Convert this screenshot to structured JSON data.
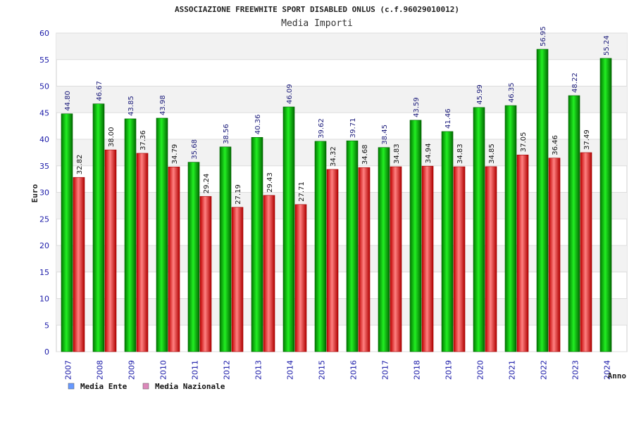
{
  "chart_data": {
    "type": "bar",
    "title": "ASSOCIAZIONE FREEWHITE SPORT DISABLED ONLUS (c.f.96029010012)",
    "subtitle": "Media Importi",
    "xlabel": "Anno",
    "ylabel": "Euro",
    "ylim": [
      0,
      60
    ],
    "yticks": [
      0,
      5,
      10,
      15,
      20,
      25,
      30,
      35,
      40,
      45,
      50,
      55,
      60
    ],
    "grid": true,
    "legend_position": "bottom-left",
    "categories": [
      "2007",
      "2008",
      "2009",
      "2010",
      "2011",
      "2012",
      "2013",
      "2014",
      "2015",
      "2016",
      "2017",
      "2018",
      "2019",
      "2020",
      "2021",
      "2022",
      "2023",
      "2024"
    ],
    "series": [
      {
        "name": "Media Ente",
        "color": "#00c000",
        "legend_color": "#6699ff",
        "values": [
          44.8,
          46.67,
          43.85,
          43.98,
          35.68,
          38.56,
          40.36,
          46.09,
          39.62,
          39.71,
          38.45,
          43.59,
          41.46,
          45.99,
          46.35,
          56.95,
          48.22,
          55.24
        ],
        "labels": [
          "44.80",
          "46.67",
          "43.85",
          "43.98",
          "35.68",
          "38.56",
          "40.36",
          "46.09",
          "39.62",
          "39.71",
          "38.45",
          "43.59",
          "41.46",
          "45.99",
          "46.35",
          "56.95",
          "48.22",
          "55.24"
        ]
      },
      {
        "name": "Media Nazionale",
        "color": "#e02020",
        "legend_color": "#dd88bb",
        "values": [
          32.82,
          38.0,
          37.36,
          34.79,
          29.24,
          27.19,
          29.43,
          27.71,
          34.32,
          34.68,
          34.83,
          34.94,
          34.83,
          34.85,
          37.05,
          36.46,
          37.49,
          null
        ],
        "labels": [
          "32.82",
          "38.00",
          "37.36",
          "34.79",
          "29.24",
          "27.19",
          "29.43",
          "27.71",
          "34.32",
          "34.68",
          "34.83",
          "34.94",
          "34.83",
          "34.85",
          "37.05",
          "36.46",
          "37.49",
          null
        ]
      }
    ]
  }
}
